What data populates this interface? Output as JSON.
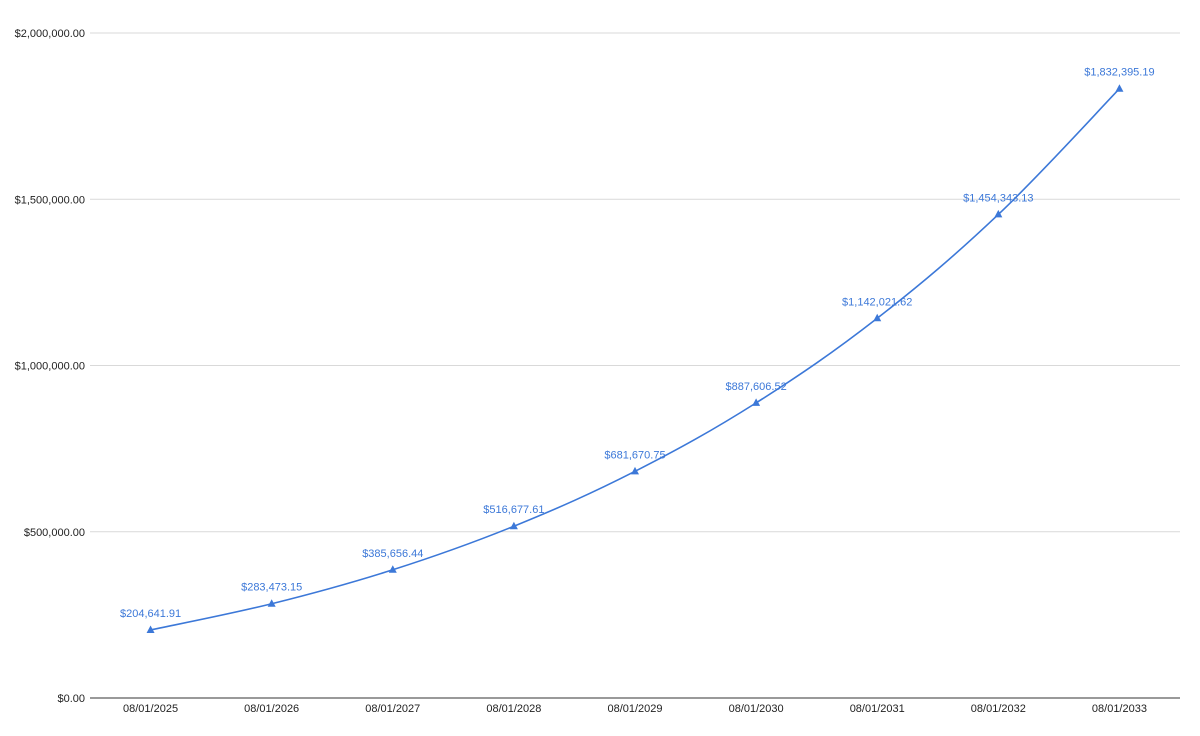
{
  "chart_data": {
    "type": "line",
    "categories": [
      "08/01/2025",
      "08/01/2026",
      "08/01/2027",
      "08/01/2028",
      "08/01/2029",
      "08/01/2030",
      "08/01/2031",
      "08/01/2032",
      "08/01/2033"
    ],
    "values": [
      204641.91,
      283473.15,
      385656.44,
      516677.61,
      681670.75,
      887606.52,
      1142021.62,
      1454343.13,
      1832395.19
    ],
    "data_labels": [
      "$204,641.91",
      "$283,473.15",
      "$385,656.44",
      "$516,677.61",
      "$681,670.75",
      "$887,606.52",
      "$1,142,021.62",
      "$1,454,343.13",
      "$1,832,395.19"
    ],
    "y_ticks": [
      0,
      500000,
      1000000,
      1500000,
      2000000
    ],
    "y_tick_labels": [
      "$0.00",
      "$500,000.00",
      "$1,000,000.00",
      "$1,500,000.00",
      "$2,000,000.00"
    ],
    "ylim": [
      0,
      2000000
    ],
    "title": "",
    "xlabel": "",
    "ylabel": "",
    "grid": true,
    "legend": "none",
    "marker": "triangle",
    "colors": {
      "line": "#3c78d8",
      "label": "#3c78d8",
      "grid": "#d9d9d9",
      "axis": "#333333",
      "text": "#222222"
    }
  }
}
